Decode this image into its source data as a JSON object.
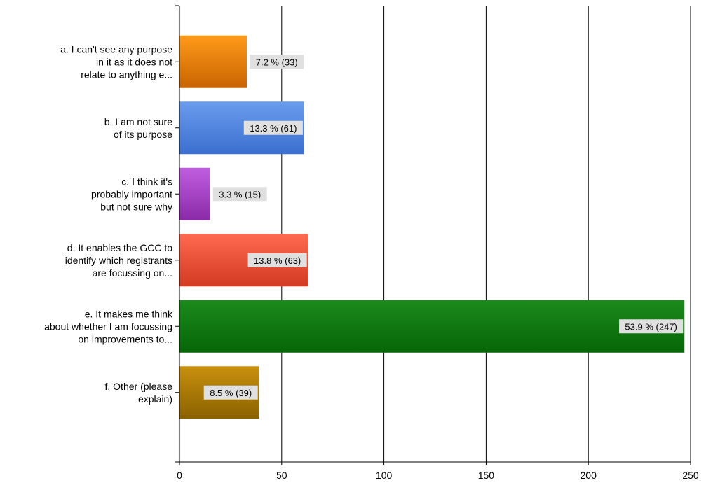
{
  "chart_data": {
    "type": "bar",
    "orientation": "horizontal",
    "categories": [
      [
        "a.  I can't see any purpose",
        "in it as it does not",
        "relate to anything e..."
      ],
      [
        "b.  I am not sure",
        "of its purpose"
      ],
      [
        "c.  I think it's",
        "probably important",
        "but not sure why"
      ],
      [
        "d.  It enables the GCC to",
        "identify which registrants",
        "are focussing on..."
      ],
      [
        "e.  It makes me think",
        "about whether I am focussing",
        "on improvements to..."
      ],
      [
        "f.  Other (please",
        "explain)"
      ]
    ],
    "values": [
      33,
      61,
      15,
      63,
      247,
      39
    ],
    "data_labels": [
      "7.2 % (33)",
      "13.3 % (61)",
      "3.3 % (15)",
      "13.8 % (63)",
      "53.9 % (247)",
      "8.5 % (39)"
    ],
    "colors": [
      [
        "#ff9a1a",
        "#c86400"
      ],
      [
        "#6a9cec",
        "#3b6fd0"
      ],
      [
        "#c05ee0",
        "#8a2aa8"
      ],
      [
        "#ff6a50",
        "#d23a22"
      ],
      [
        "#1c8a1c",
        "#066606"
      ],
      [
        "#c8900e",
        "#8a6200"
      ]
    ],
    "xlim": [
      0,
      250
    ],
    "x_ticks": [
      0,
      50,
      100,
      150,
      200,
      250
    ],
    "grid": true,
    "legend": "none"
  }
}
